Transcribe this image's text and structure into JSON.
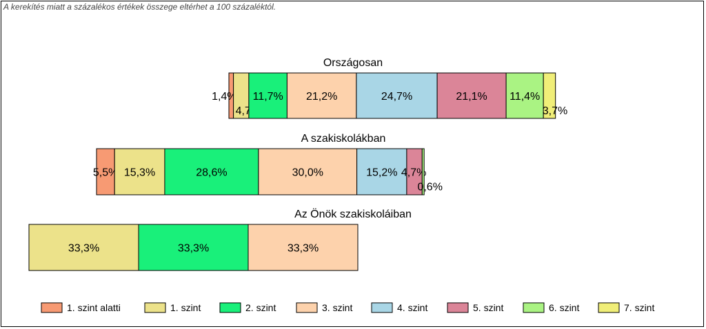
{
  "note": "A kerekítés miatt a  százalékos értékek összege eltérhet a 100 százaléktól.",
  "chart_data": {
    "type": "bar",
    "orientation": "horizontal",
    "stacked": true,
    "legend_position": "bottom",
    "grid": false,
    "series": [
      {
        "name": "1. szint alatti",
        "color": "#f79a73"
      },
      {
        "name": "1. szint",
        "color": "#ece28a"
      },
      {
        "name": "2. szint",
        "color": "#19f07a"
      },
      {
        "name": "3. szint",
        "color": "#fdd2ac"
      },
      {
        "name": "4. szint",
        "color": "#a9d6e6"
      },
      {
        "name": "5. szint",
        "color": "#db8598"
      },
      {
        "name": "6. szint",
        "color": "#aaf383"
      },
      {
        "name": "7. szint",
        "color": "#f0ee78"
      }
    ],
    "groups": [
      {
        "label": "Országosan",
        "values": [
          1.4,
          4.7,
          11.7,
          21.2,
          24.7,
          21.1,
          11.4,
          3.7
        ],
        "labels": [
          "1,4%",
          "4,7%",
          "11,7%",
          "21,2%",
          "24,7%",
          "21,1%",
          "11,4%",
          "3,7%"
        ]
      },
      {
        "label": "A szakiskolákban",
        "values": [
          5.5,
          15.3,
          28.6,
          30.0,
          15.2,
          4.7,
          0.6,
          0
        ],
        "labels": [
          "5,5%",
          "15,3%",
          "28,6%",
          "30,0%",
          "15,2%",
          "4,7%",
          "0,6%",
          ""
        ]
      },
      {
        "label": "Az Önök szakiskoláiban",
        "values": [
          0,
          33.3,
          33.3,
          33.3,
          0,
          0,
          0,
          0
        ],
        "labels": [
          "",
          "33,3%",
          "33,3%",
          "33,3%",
          "",
          "",
          "",
          ""
        ]
      }
    ]
  }
}
